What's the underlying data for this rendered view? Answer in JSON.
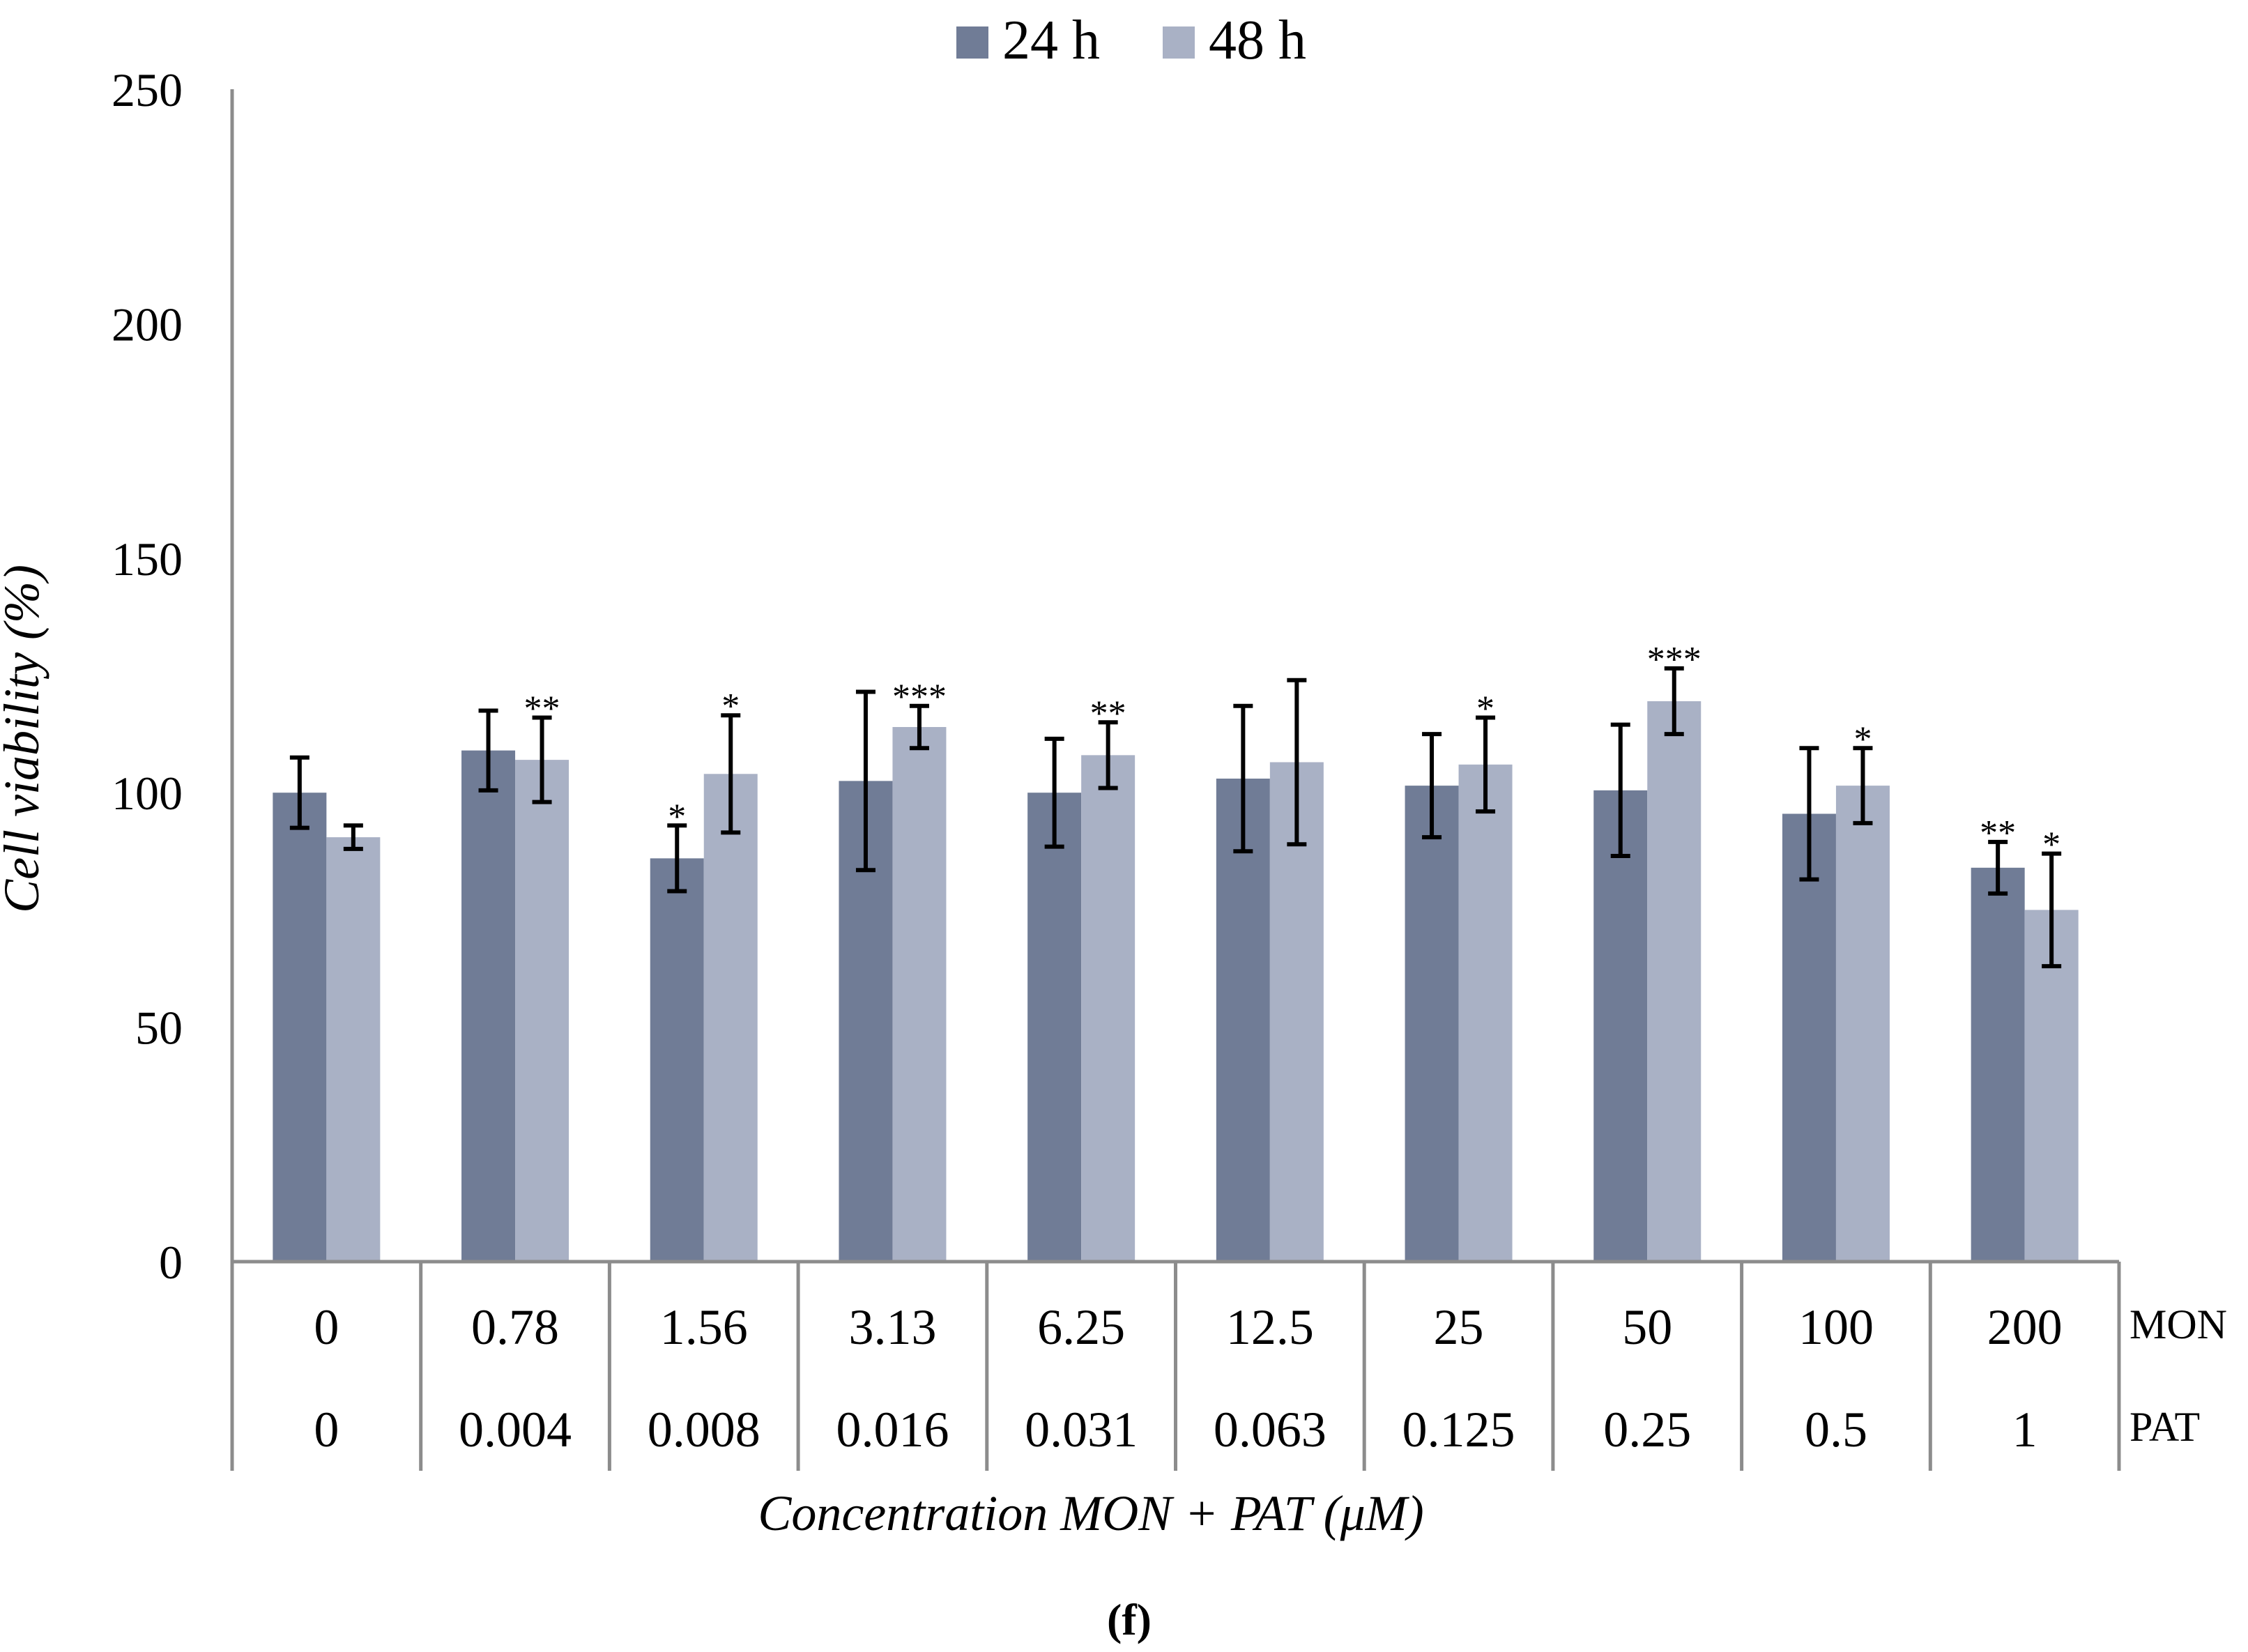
{
  "panel_label": "(f)",
  "chart_data": {
    "type": "bar",
    "title": "",
    "xlabel": "Concentration MON + PAT (μM)",
    "ylabel": "Cell viability (%)",
    "ylim": [
      0,
      250
    ],
    "yticks": [
      0,
      50,
      100,
      150,
      200,
      250
    ],
    "grid": false,
    "legend_position": "top-center",
    "category_rows": [
      {
        "name": "MON",
        "labels": [
          "0",
          "0.78",
          "1.56",
          "3.13",
          "6.25",
          "12.5",
          "25",
          "50",
          "100",
          "200"
        ]
      },
      {
        "name": "PAT",
        "labels": [
          "0",
          "0.004",
          "0.008",
          "0.016",
          "0.031",
          "0.063",
          "0.125",
          "0.25",
          "0.5",
          "1"
        ]
      }
    ],
    "series": [
      {
        "name": "24 h",
        "color": "#707c96",
        "values": [
          100,
          109,
          86,
          102.5,
          100,
          103,
          101.5,
          100.5,
          95.5,
          84
        ],
        "errors": [
          7.5,
          8.5,
          7,
          19,
          11.5,
          15.5,
          11,
          14,
          14,
          5.5
        ],
        "significance": [
          "",
          "",
          "*",
          "",
          "",
          "",
          "",
          "",
          "",
          "**"
        ]
      },
      {
        "name": "48 h",
        "color": "#a9b1c5",
        "values": [
          90.5,
          107,
          104,
          114,
          108,
          106.5,
          106,
          119.5,
          101.5,
          75
        ],
        "errors": [
          2.5,
          9,
          12.5,
          4.5,
          7,
          17.5,
          10,
          7,
          8,
          12
        ],
        "significance": [
          "",
          "**",
          "*",
          "***",
          "**",
          "",
          "*",
          "***",
          "*",
          "*"
        ]
      }
    ]
  }
}
